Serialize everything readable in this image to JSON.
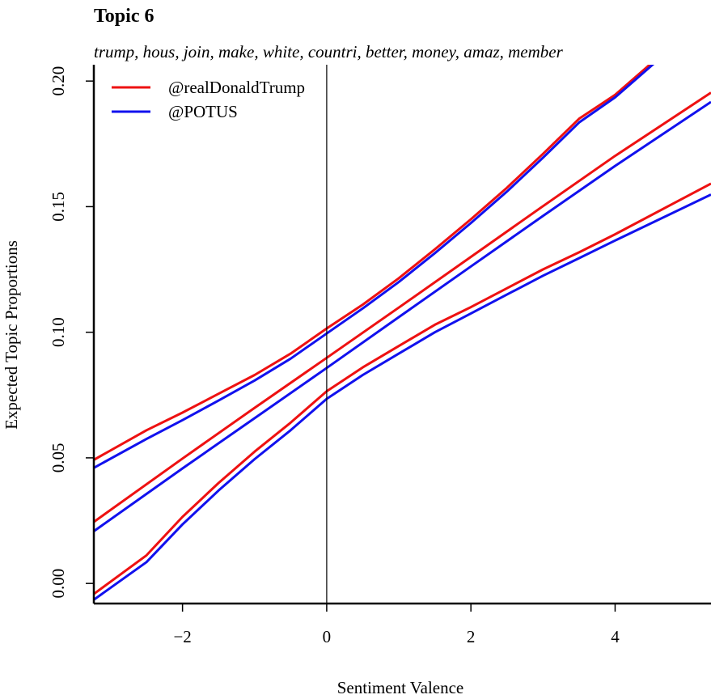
{
  "chart_data": {
    "type": "line",
    "title": "Topic 6",
    "subtitle": "trump, hous, join, make, white, countri, better, money, amaz, member",
    "xlabel": "Sentiment Valence",
    "ylabel": "Expected Topic Proportions",
    "xlim": [
      -3.23,
      5.33
    ],
    "ylim": [
      -0.008,
      0.2065
    ],
    "xticks": [
      -2,
      0,
      2,
      4
    ],
    "yticks": [
      0.0,
      0.05,
      0.1,
      0.15,
      0.2
    ],
    "xtick_labels": [
      "−2",
      "0",
      "2",
      "4"
    ],
    "ytick_labels": [
      "0.00",
      "0.05",
      "0.10",
      "0.15",
      "0.20"
    ],
    "vline_x": 0,
    "legend_position": "top-left",
    "series": [
      {
        "name": "@realDonaldTrump",
        "color": "#ee1111",
        "lines": {
          "estimate": [
            [
              -3.23,
              0.0245
            ],
            [
              -2.0,
              0.0497
            ],
            [
              -1.0,
              0.0699
            ],
            [
              0.0,
              0.0898
            ],
            [
              1.0,
              0.1098
            ],
            [
              2.0,
              0.13
            ],
            [
              3.0,
              0.1502
            ],
            [
              4.0,
              0.1702
            ],
            [
              5.33,
              0.1954
            ]
          ],
          "upper": [
            [
              -3.23,
              0.0492
            ],
            [
              -2.5,
              0.061
            ],
            [
              -2.0,
              0.068
            ],
            [
              -1.5,
              0.0755
            ],
            [
              -1.0,
              0.083
            ],
            [
              -0.5,
              0.0915
            ],
            [
              0.0,
              0.1015
            ],
            [
              0.5,
              0.111
            ],
            [
              1.0,
              0.1215
            ],
            [
              1.5,
              0.133
            ],
            [
              2.0,
              0.145
            ],
            [
              2.5,
              0.1575
            ],
            [
              3.0,
              0.171
            ],
            [
              3.5,
              0.185
            ],
            [
              4.0,
              0.1945
            ],
            [
              4.6,
              0.2095
            ]
          ],
          "lower": [
            [
              -3.23,
              -0.0042
            ],
            [
              -2.5,
              0.0112
            ],
            [
              -2.0,
              0.0265
            ],
            [
              -1.5,
              0.04
            ],
            [
              -1.0,
              0.0525
            ],
            [
              -0.5,
              0.064
            ],
            [
              0.0,
              0.0765
            ],
            [
              0.5,
              0.086
            ],
            [
              1.0,
              0.0945
            ],
            [
              1.5,
              0.103
            ],
            [
              2.0,
              0.11
            ],
            [
              2.5,
              0.1175
            ],
            [
              3.0,
              0.125
            ],
            [
              3.5,
              0.1318
            ],
            [
              4.0,
              0.139
            ],
            [
              5.33,
              0.1592
            ]
          ]
        }
      },
      {
        "name": "@POTUS",
        "color": "#1111ee",
        "lines": {
          "estimate": [
            [
              -3.23,
              0.0208
            ],
            [
              -2.0,
              0.0458
            ],
            [
              -1.0,
              0.0658
            ],
            [
              0.0,
              0.0858
            ],
            [
              1.0,
              0.106
            ],
            [
              2.0,
              0.1262
            ],
            [
              3.0,
              0.1463
            ],
            [
              4.0,
              0.1662
            ],
            [
              5.33,
              0.1917
            ]
          ],
          "upper": [
            [
              -3.23,
              0.046
            ],
            [
              -2.5,
              0.0575
            ],
            [
              -2.0,
              0.065
            ],
            [
              -1.5,
              0.0728
            ],
            [
              -1.0,
              0.0808
            ],
            [
              -0.5,
              0.0895
            ],
            [
              0.0,
              0.0995
            ],
            [
              0.5,
              0.1095
            ],
            [
              1.0,
              0.12
            ],
            [
              1.5,
              0.1315
            ],
            [
              2.0,
              0.1435
            ],
            [
              2.5,
              0.156
            ],
            [
              3.0,
              0.1695
            ],
            [
              3.5,
              0.1835
            ],
            [
              4.0,
              0.1935
            ],
            [
              4.6,
              0.2085
            ]
          ],
          "lower": [
            [
              -3.23,
              -0.0065
            ],
            [
              -2.5,
              0.0085
            ],
            [
              -2.0,
              0.0235
            ],
            [
              -1.5,
              0.037
            ],
            [
              -1.0,
              0.0495
            ],
            [
              -0.5,
              0.061
            ],
            [
              0.0,
              0.0735
            ],
            [
              0.5,
              0.083
            ],
            [
              1.0,
              0.0915
            ],
            [
              1.5,
              0.1
            ],
            [
              2.0,
              0.1075
            ],
            [
              2.5,
              0.115
            ],
            [
              3.0,
              0.1225
            ],
            [
              3.5,
              0.1295
            ],
            [
              4.0,
              0.1365
            ],
            [
              5.33,
              0.1548
            ]
          ]
        }
      }
    ]
  }
}
